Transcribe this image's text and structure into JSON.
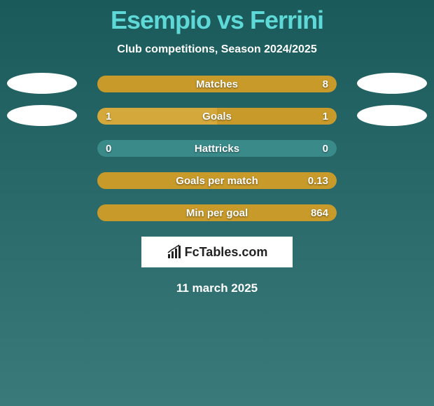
{
  "title": "Esempio vs Ferrini",
  "subtitle": "Club competitions, Season 2024/2025",
  "date": "11 march 2025",
  "logo_text": "FcTables.com",
  "colors": {
    "left_fill": "#d4a83a",
    "right_fill": "#c89a2a",
    "bar_bg": "#3a8a8a",
    "flag_bg": "#ffffff"
  },
  "rows": [
    {
      "label": "Matches",
      "left_value": "",
      "right_value": "8",
      "left_pct": 0,
      "right_pct": 100,
      "show_flags": true
    },
    {
      "label": "Goals",
      "left_value": "1",
      "right_value": "1",
      "left_pct": 50,
      "right_pct": 50,
      "show_flags": true
    },
    {
      "label": "Hattricks",
      "left_value": "0",
      "right_value": "0",
      "left_pct": 0,
      "right_pct": 0,
      "show_flags": false
    },
    {
      "label": "Goals per match",
      "left_value": "",
      "right_value": "0.13",
      "left_pct": 0,
      "right_pct": 100,
      "show_flags": false
    },
    {
      "label": "Min per goal",
      "left_value": "",
      "right_value": "864",
      "left_pct": 0,
      "right_pct": 100,
      "show_flags": false
    }
  ]
}
